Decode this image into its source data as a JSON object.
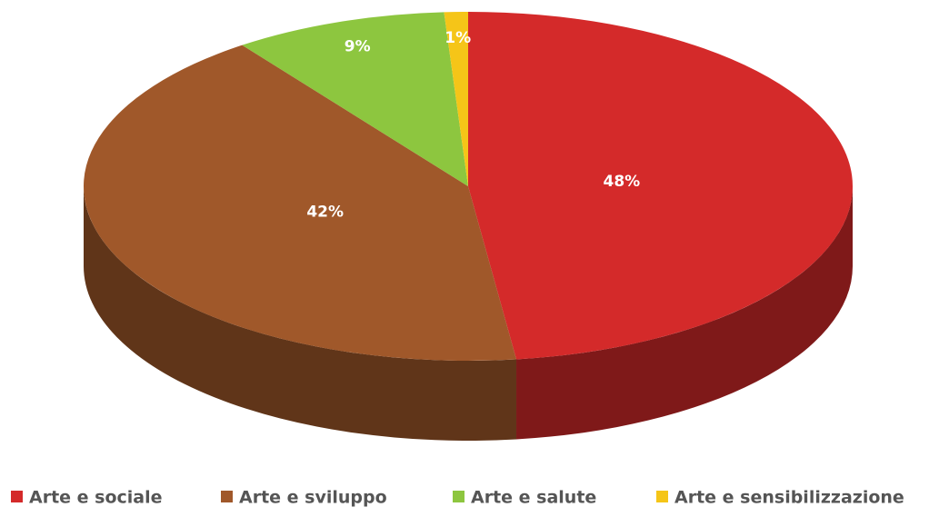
{
  "chart_data": {
    "type": "pie",
    "categories": [
      "Arte e sociale",
      "Arte e sviluppo",
      "Arte e salute",
      "Arte e sensibilizzazione"
    ],
    "values": [
      48,
      42,
      9,
      1
    ],
    "value_labels": [
      "48%",
      "42%",
      "9%",
      "1%"
    ],
    "colors": [
      "#d42a2a",
      "#a0582a",
      "#8dc63f",
      "#f5c518"
    ],
    "legend": "bottom"
  }
}
